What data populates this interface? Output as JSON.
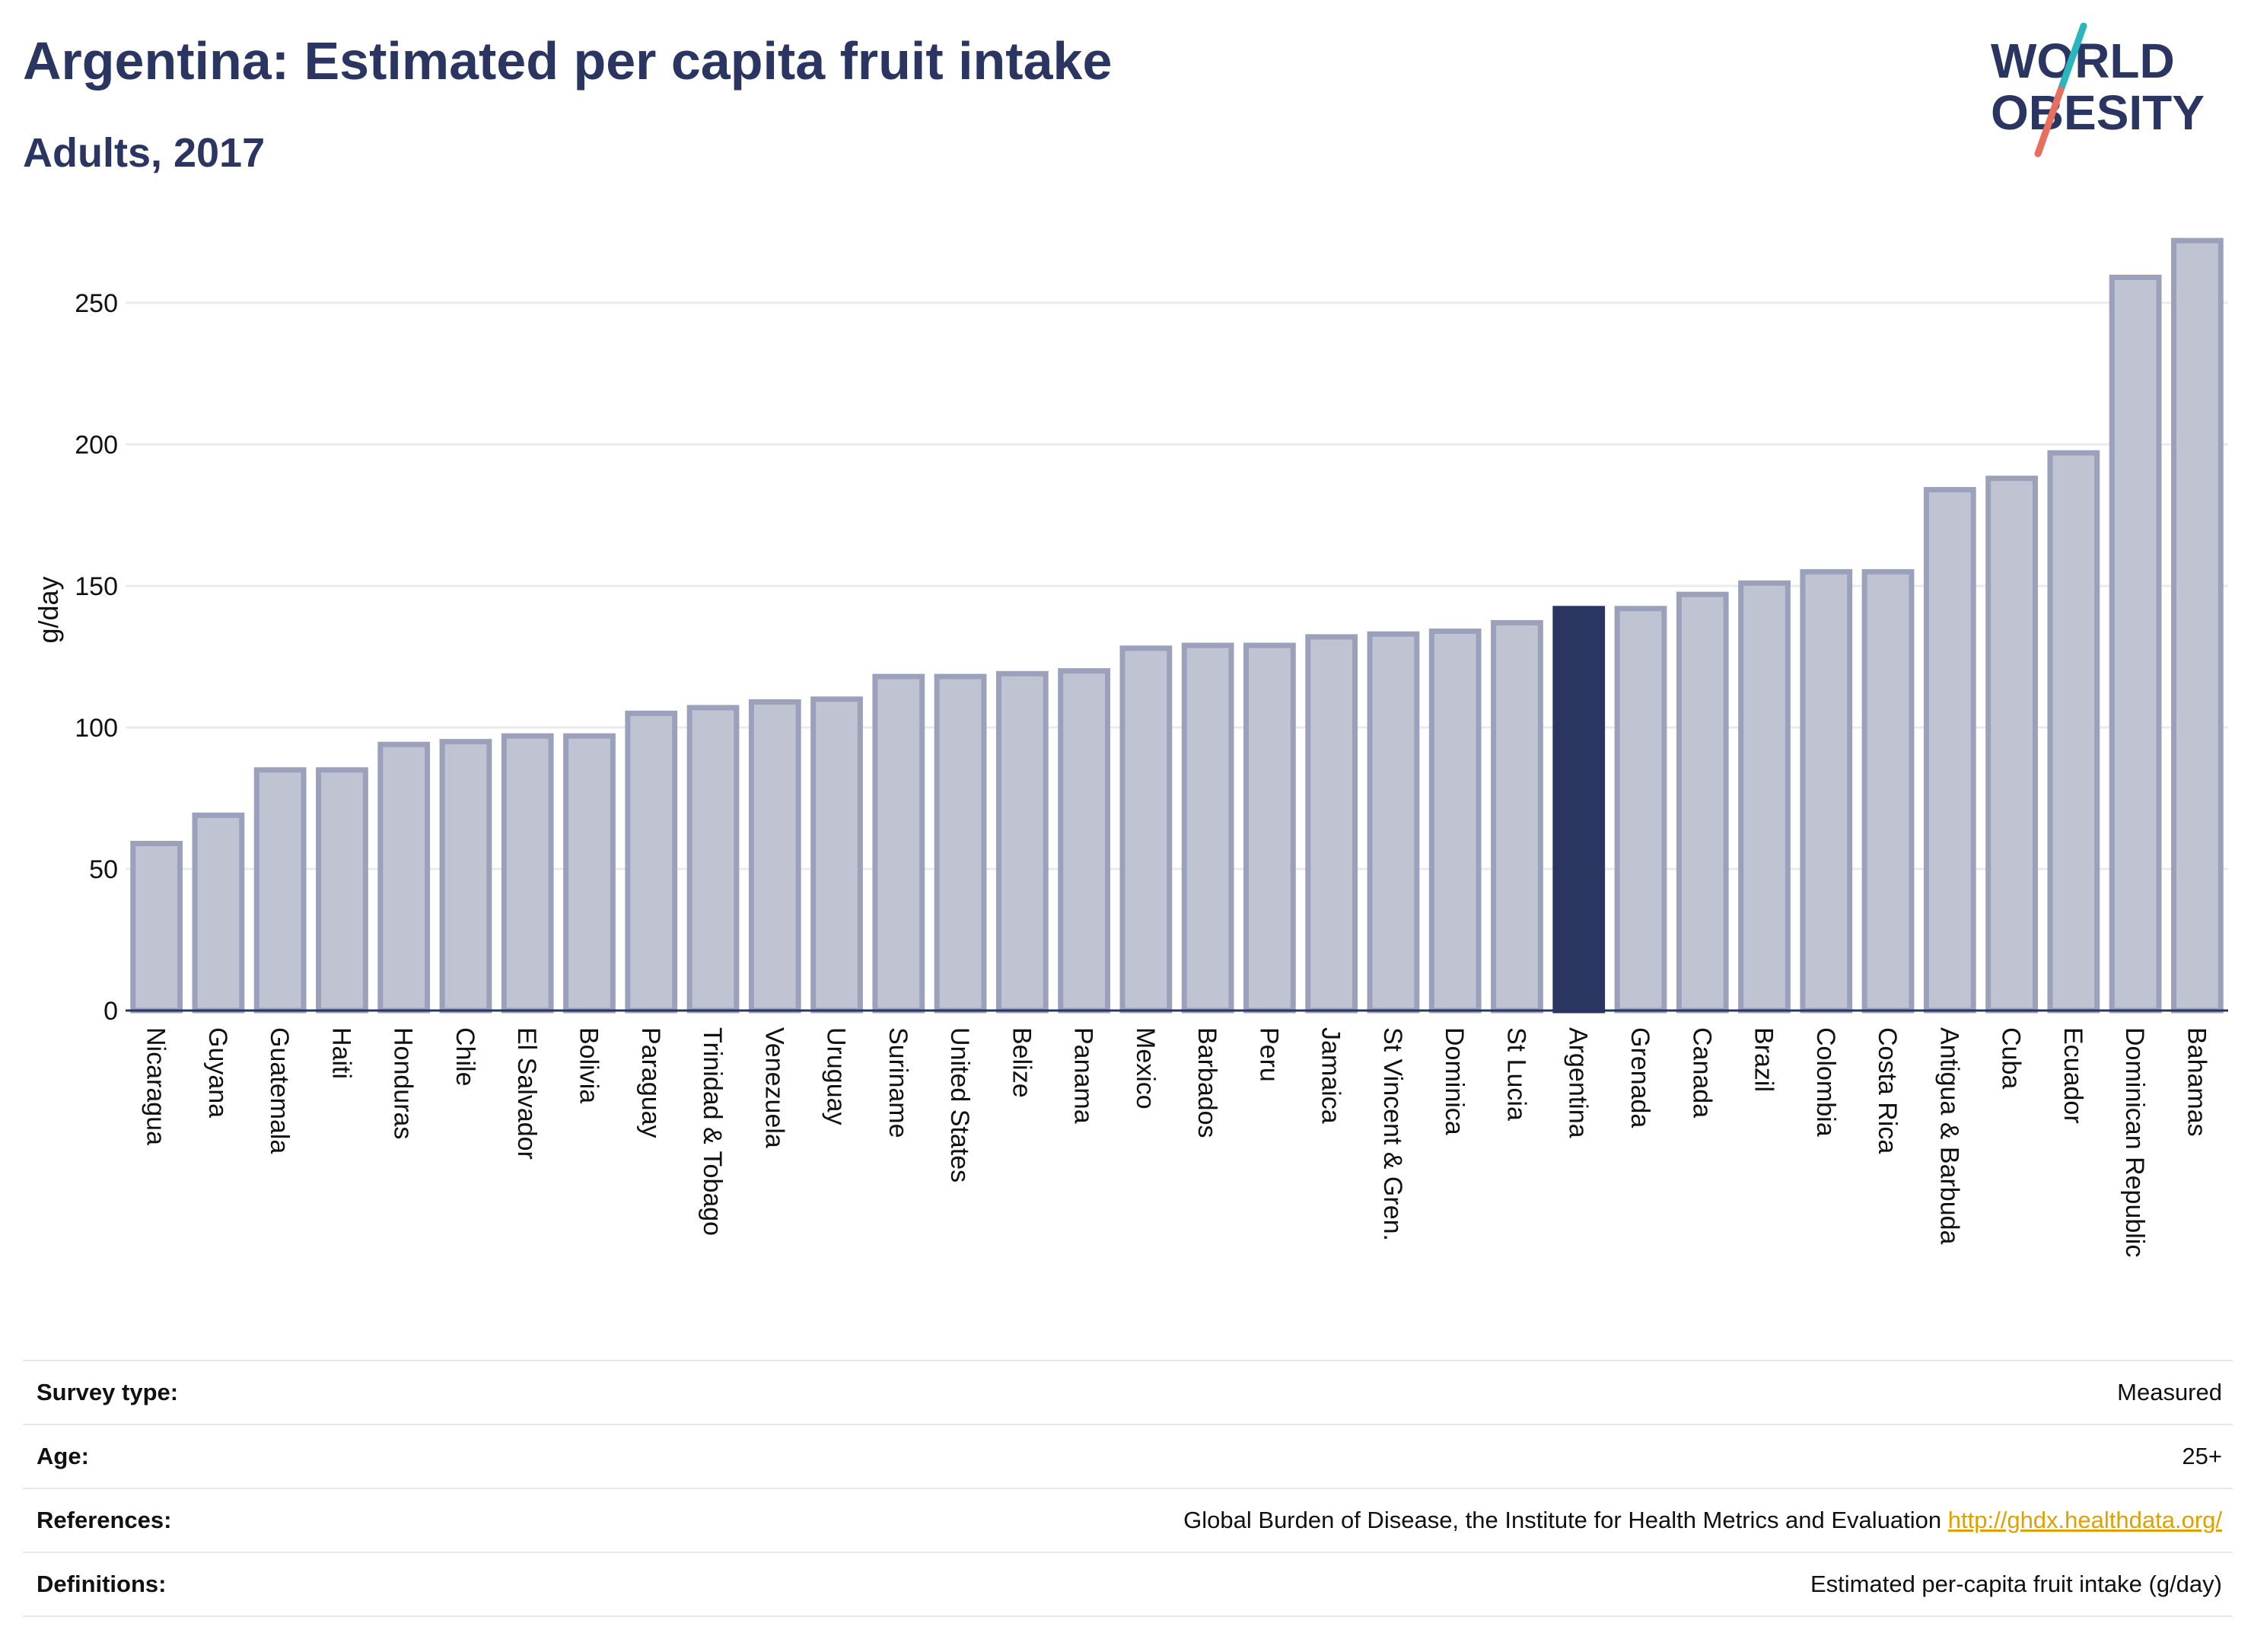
{
  "header": {
    "title": "Argentina: Estimated per capita fruit intake",
    "subtitle": "Adults, 2017"
  },
  "logo": {
    "line1": "WORLD",
    "line2": "OBESITY"
  },
  "colors": {
    "highlight": "#2a3561",
    "bar": "#c0c3d1",
    "bar_stroke": "#9ba1bb",
    "grid": "#e9ebef",
    "logo_teal": "#2bb5bd",
    "logo_coral": "#e76f5d"
  },
  "chart_data": {
    "type": "bar",
    "title": "Argentina: Estimated per capita fruit intake",
    "subtitle": "Adults, 2017",
    "xlabel": "",
    "ylabel": "g/day",
    "ylim": [
      0,
      275
    ],
    "yticks": [
      0,
      50,
      100,
      150,
      200,
      250
    ],
    "grid": true,
    "highlight": "Argentina",
    "categories": [
      "Nicaragua",
      "Guyana",
      "Guatemala",
      "Haiti",
      "Honduras",
      "Chile",
      "El Salvador",
      "Bolivia",
      "Paraguay",
      "Trinidad & Tobago",
      "Venezuela",
      "Uruguay",
      "Suriname",
      "United States",
      "Belize",
      "Panama",
      "Mexico",
      "Barbados",
      "Peru",
      "Jamaica",
      "St Vincent & Gren.",
      "Dominica",
      "St Lucia",
      "Argentina",
      "Grenada",
      "Canada",
      "Brazil",
      "Colombia",
      "Costa Rica",
      "Antigua & Barbuda",
      "Cuba",
      "Ecuador",
      "Dominican Republic",
      "Bahamas"
    ],
    "values": [
      59,
      69,
      85,
      85,
      94,
      95,
      97,
      97,
      105,
      107,
      109,
      110,
      118,
      118,
      119,
      120,
      128,
      129,
      129,
      132,
      133,
      134,
      137,
      142,
      142,
      147,
      151,
      155,
      155,
      184,
      188,
      197,
      259,
      272
    ]
  },
  "footer": {
    "rows": [
      {
        "label": "Survey type:",
        "value": "Measured",
        "link": ""
      },
      {
        "label": "Age:",
        "value": "25+",
        "link": ""
      },
      {
        "label": "References:",
        "value": "Global Burden of Disease, the Institute for Health Metrics and Evaluation",
        "link": "http://ghdx.healthdata.org/"
      },
      {
        "label": "Definitions:",
        "value": "Estimated per-capita fruit intake (g/day)",
        "link": ""
      }
    ]
  }
}
